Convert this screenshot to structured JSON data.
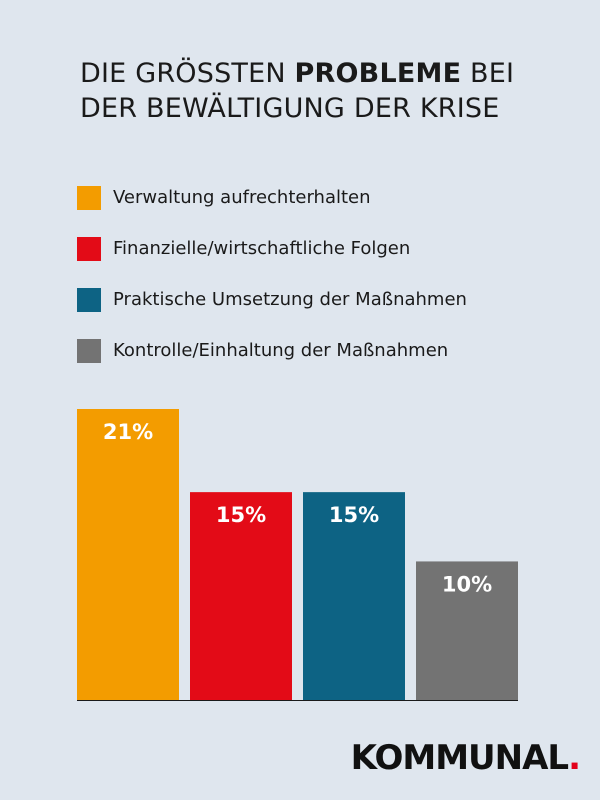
{
  "title": {
    "pre": "DIE GRÖSSTEN ",
    "bold": "PROBLEME",
    "post": " BEI",
    "line2": "DER BEWÄLTIGUNG DER KRISE"
  },
  "chart_data": {
    "type": "bar",
    "categories": [
      "Verwaltung aufrechterhalten",
      "Finanzielle/wirtschaftliche Folgen",
      "Praktische Umsetzung der Maßnahmen",
      "Kontrolle/Einhaltung der Maßnahmen"
    ],
    "values": [
      21,
      15,
      15,
      10
    ],
    "value_labels": [
      "21%",
      "15%",
      "15%",
      "10%"
    ],
    "colors": [
      "#f39c00",
      "#e30b17",
      "#0d6384",
      "#737373"
    ],
    "unit": "%",
    "ylim": [
      0,
      21
    ],
    "grid": false,
    "legend_position": "top-left"
  },
  "brand": {
    "name": "KOMMUNAL",
    "dot": "."
  }
}
